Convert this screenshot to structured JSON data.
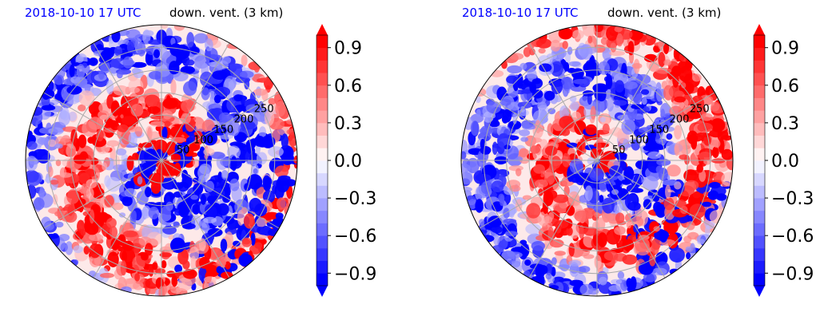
{
  "chart_data": [
    {
      "type": "heatmap",
      "projection": "polar",
      "title_date": "2018-10-10 17 UTC",
      "title_variable": "down. vent. (3 km)",
      "radial_ticks": [
        "50",
        "100",
        "150",
        "200",
        "250"
      ],
      "radial_tick_values": [
        50,
        100,
        150,
        200,
        250
      ],
      "rmax": 300,
      "grid": true,
      "colorbar": {
        "vmin": -1.0,
        "vmax": 1.0,
        "levels": 20,
        "extend": "both",
        "ticks": [
          0.9,
          0.6,
          0.3,
          0.0,
          -0.3,
          -0.6,
          -0.9
        ],
        "tick_labels": [
          "0.9",
          "0.6",
          "0.3",
          "0.0",
          "−0.3",
          "−0.6",
          "−0.9"
        ],
        "colormap": "bwr",
        "colors": {
          "low": "#0000ff",
          "mid": "#ffffff",
          "high": "#ff0000"
        }
      }
    },
    {
      "type": "heatmap",
      "projection": "polar",
      "title_date": "2018-10-10 17 UTC",
      "title_variable": "down. vent. (3 km)",
      "radial_ticks": [
        "50",
        "100",
        "150",
        "200",
        "250"
      ],
      "radial_tick_values": [
        50,
        100,
        150,
        200,
        250
      ],
      "rmax": 300,
      "grid": true,
      "colorbar": {
        "vmin": -1.0,
        "vmax": 1.0,
        "levels": 20,
        "extend": "both",
        "ticks": [
          0.9,
          0.6,
          0.3,
          0.0,
          -0.3,
          -0.6,
          -0.9
        ],
        "tick_labels": [
          "0.9",
          "0.6",
          "0.3",
          "0.0",
          "−0.3",
          "−0.6",
          "−0.9"
        ],
        "colormap": "bwr",
        "colors": {
          "low": "#0000ff",
          "mid": "#ffffff",
          "high": "#ff0000"
        }
      }
    }
  ]
}
